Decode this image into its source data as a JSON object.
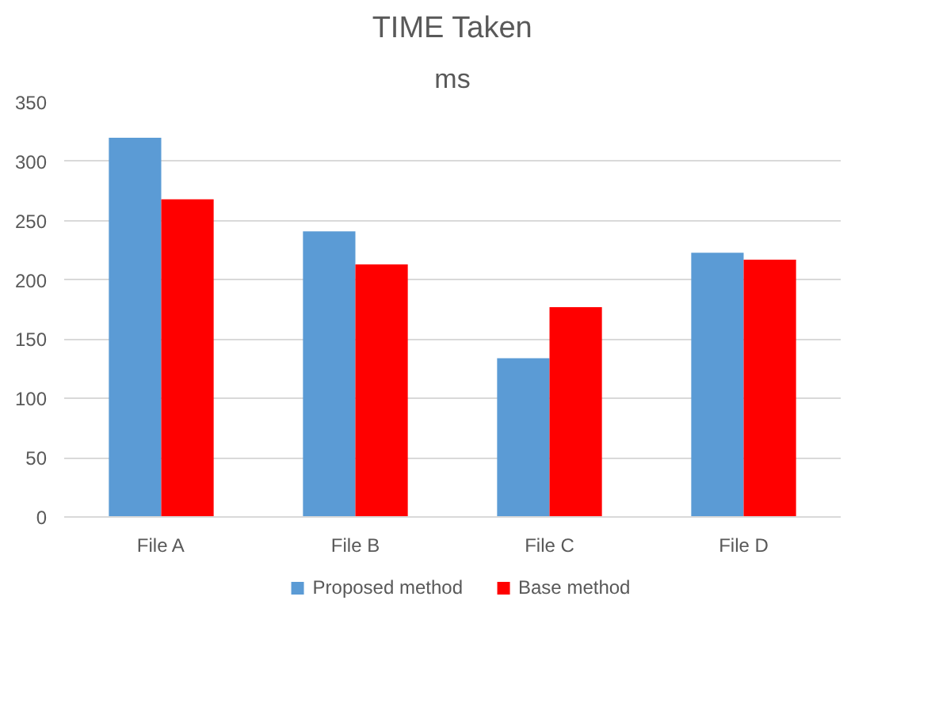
{
  "chart_data": {
    "type": "bar",
    "title": "TIME Taken",
    "subtitle": "ms",
    "categories": [
      "File A",
      "File B",
      "File C",
      "File D"
    ],
    "series": [
      {
        "name": "Proposed method",
        "color": "#5b9bd5",
        "values": [
          320,
          241,
          134,
          223
        ]
      },
      {
        "name": "Base method",
        "color": "#ff0000",
        "values": [
          268,
          213,
          177,
          217
        ]
      }
    ],
    "ylim": [
      0,
      350
    ],
    "yticks": [
      0,
      50,
      100,
      150,
      200,
      250,
      300,
      350
    ],
    "grid": "y",
    "legend": "bottom"
  }
}
